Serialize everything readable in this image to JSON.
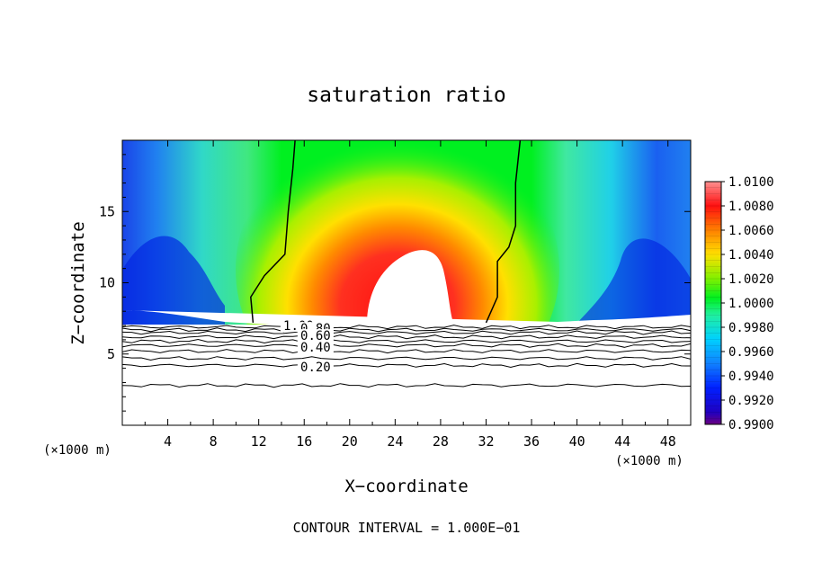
{
  "chart_data": {
    "type": "heatmap",
    "title": "saturation ratio",
    "xlabel": "X−coordinate",
    "ylabel": "Z−coordinate",
    "x_unit_left": "(×1000 m)",
    "x_unit_right": "(×1000 m)",
    "footer": "CONTOUR INTERVAL = 1.000E−01",
    "xlim": [
      0,
      50
    ],
    "ylim": [
      0,
      20
    ],
    "xticks": [
      4,
      8,
      12,
      16,
      20,
      24,
      28,
      32,
      36,
      40,
      44,
      48
    ],
    "yticks": [
      5,
      10,
      15
    ],
    "colorbar": {
      "min": 0.99,
      "max": 1.01,
      "labels": [
        "1.0100",
        "1.0080",
        "1.0060",
        "1.0040",
        "1.0020",
        "1.0000",
        "0.9980",
        "0.9960",
        "0.9940",
        "0.9920",
        "0.9900"
      ]
    },
    "contour_labels": [
      {
        "text": "1.00",
        "x": 15.5,
        "z": 7.0
      },
      {
        "text": "0.80",
        "x": 17.0,
        "z": 6.8
      },
      {
        "text": "0.60",
        "x": 17.0,
        "z": 6.3
      },
      {
        "text": "0.40",
        "x": 17.0,
        "z": 5.5
      },
      {
        "text": "0.20",
        "x": 17.0,
        "z": 4.1
      }
    ],
    "contour_levels_below": [
      6.9,
      6.7,
      6.5,
      6.2,
      5.9,
      5.6,
      5.2,
      4.7,
      4.2,
      2.8
    ],
    "unity_contour_left": [
      [
        15.2,
        20
      ],
      [
        15.0,
        18
      ],
      [
        14.6,
        15
      ],
      [
        14.3,
        12
      ],
      [
        12.5,
        10.5
      ],
      [
        11.3,
        9
      ],
      [
        11.5,
        7.2
      ]
    ],
    "unity_contour_right": [
      [
        35.0,
        20
      ],
      [
        34.6,
        17
      ],
      [
        34.6,
        14
      ],
      [
        34.0,
        12.5
      ],
      [
        33.0,
        11.5
      ],
      [
        33.0,
        9
      ],
      [
        32.0,
        7.2
      ]
    ]
  }
}
